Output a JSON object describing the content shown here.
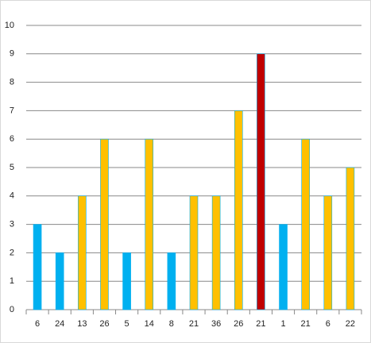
{
  "chart_data": {
    "type": "bar",
    "categories": [
      "6",
      "24",
      "13",
      "26",
      "5",
      "14",
      "8",
      "21",
      "36",
      "26",
      "21",
      "1",
      "21",
      "6",
      "22"
    ],
    "values": [
      3,
      2,
      4,
      6,
      2,
      6,
      2,
      4,
      4,
      7,
      9,
      3,
      6,
      4,
      5
    ],
    "colors": [
      "#00b0f0",
      "#00b0f0",
      "#ffc000",
      "#ffc000",
      "#00b0f0",
      "#ffc000",
      "#00b0f0",
      "#ffc000",
      "#ffc000",
      "#ffc000",
      "#c00000",
      "#00b0f0",
      "#ffc000",
      "#ffc000",
      "#ffc000"
    ],
    "ylim": [
      0,
      10
    ],
    "yticks": [
      0,
      1,
      2,
      3,
      4,
      5,
      6,
      7,
      8,
      9,
      10
    ],
    "grid": true
  }
}
